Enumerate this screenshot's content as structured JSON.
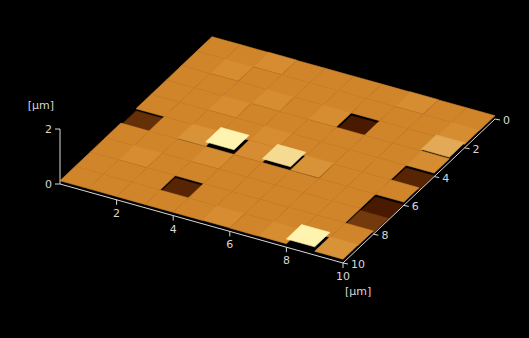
{
  "chart_data": {
    "type": "surface",
    "z_label": "[µm]",
    "y_label": "[µm]",
    "xlim": [
      0,
      10
    ],
    "xticks": [
      2,
      4,
      6,
      8,
      10
    ],
    "ylim": [
      0,
      10
    ],
    "yticks": [
      0,
      2,
      4,
      6,
      8,
      10
    ],
    "zlim": [
      0,
      2
    ],
    "zticks": [
      0,
      2
    ],
    "x": [
      0.5,
      1.5,
      2.5,
      3.5,
      4.5,
      5.5,
      6.5,
      7.5,
      8.5,
      9.5
    ],
    "y": [
      0.5,
      1.5,
      2.5,
      3.5,
      4.5,
      5.5,
      6.5,
      7.5,
      8.5,
      9.5
    ],
    "z": [
      [
        0.12,
        0.12,
        0.13,
        0.12,
        0.12,
        0.12,
        0.12,
        0.13,
        0.12,
        0.12
      ],
      [
        0.12,
        0.13,
        0.12,
        0.12,
        0.12,
        0.12,
        0.12,
        0.12,
        0.12,
        0.13
      ],
      [
        0.12,
        0.12,
        0.12,
        0.13,
        0.12,
        0.13,
        0.02,
        0.12,
        0.12,
        0.18
      ],
      [
        0.12,
        0.12,
        0.13,
        0.12,
        0.12,
        0.12,
        0.12,
        0.12,
        0.12,
        0.13
      ],
      [
        0.12,
        0.12,
        0.12,
        0.12,
        0.13,
        0.12,
        0.12,
        0.12,
        0.12,
        0.03
      ],
      [
        0.04,
        0.12,
        0.14,
        0.3,
        0.13,
        0.26,
        0.14,
        0.12,
        0.12,
        0.12
      ],
      [
        0.12,
        0.12,
        0.12,
        0.13,
        0.12,
        0.12,
        0.12,
        0.12,
        0.12,
        0.02
      ],
      [
        0.12,
        0.13,
        0.12,
        0.12,
        0.12,
        0.12,
        0.12,
        0.12,
        0.12,
        0.05
      ],
      [
        0.12,
        0.12,
        0.12,
        0.03,
        0.12,
        0.12,
        0.12,
        0.12,
        0.12,
        0.12
      ],
      [
        0.12,
        0.12,
        0.12,
        0.12,
        0.12,
        0.13,
        0.12,
        0.13,
        0.3,
        0.14
      ]
    ]
  }
}
